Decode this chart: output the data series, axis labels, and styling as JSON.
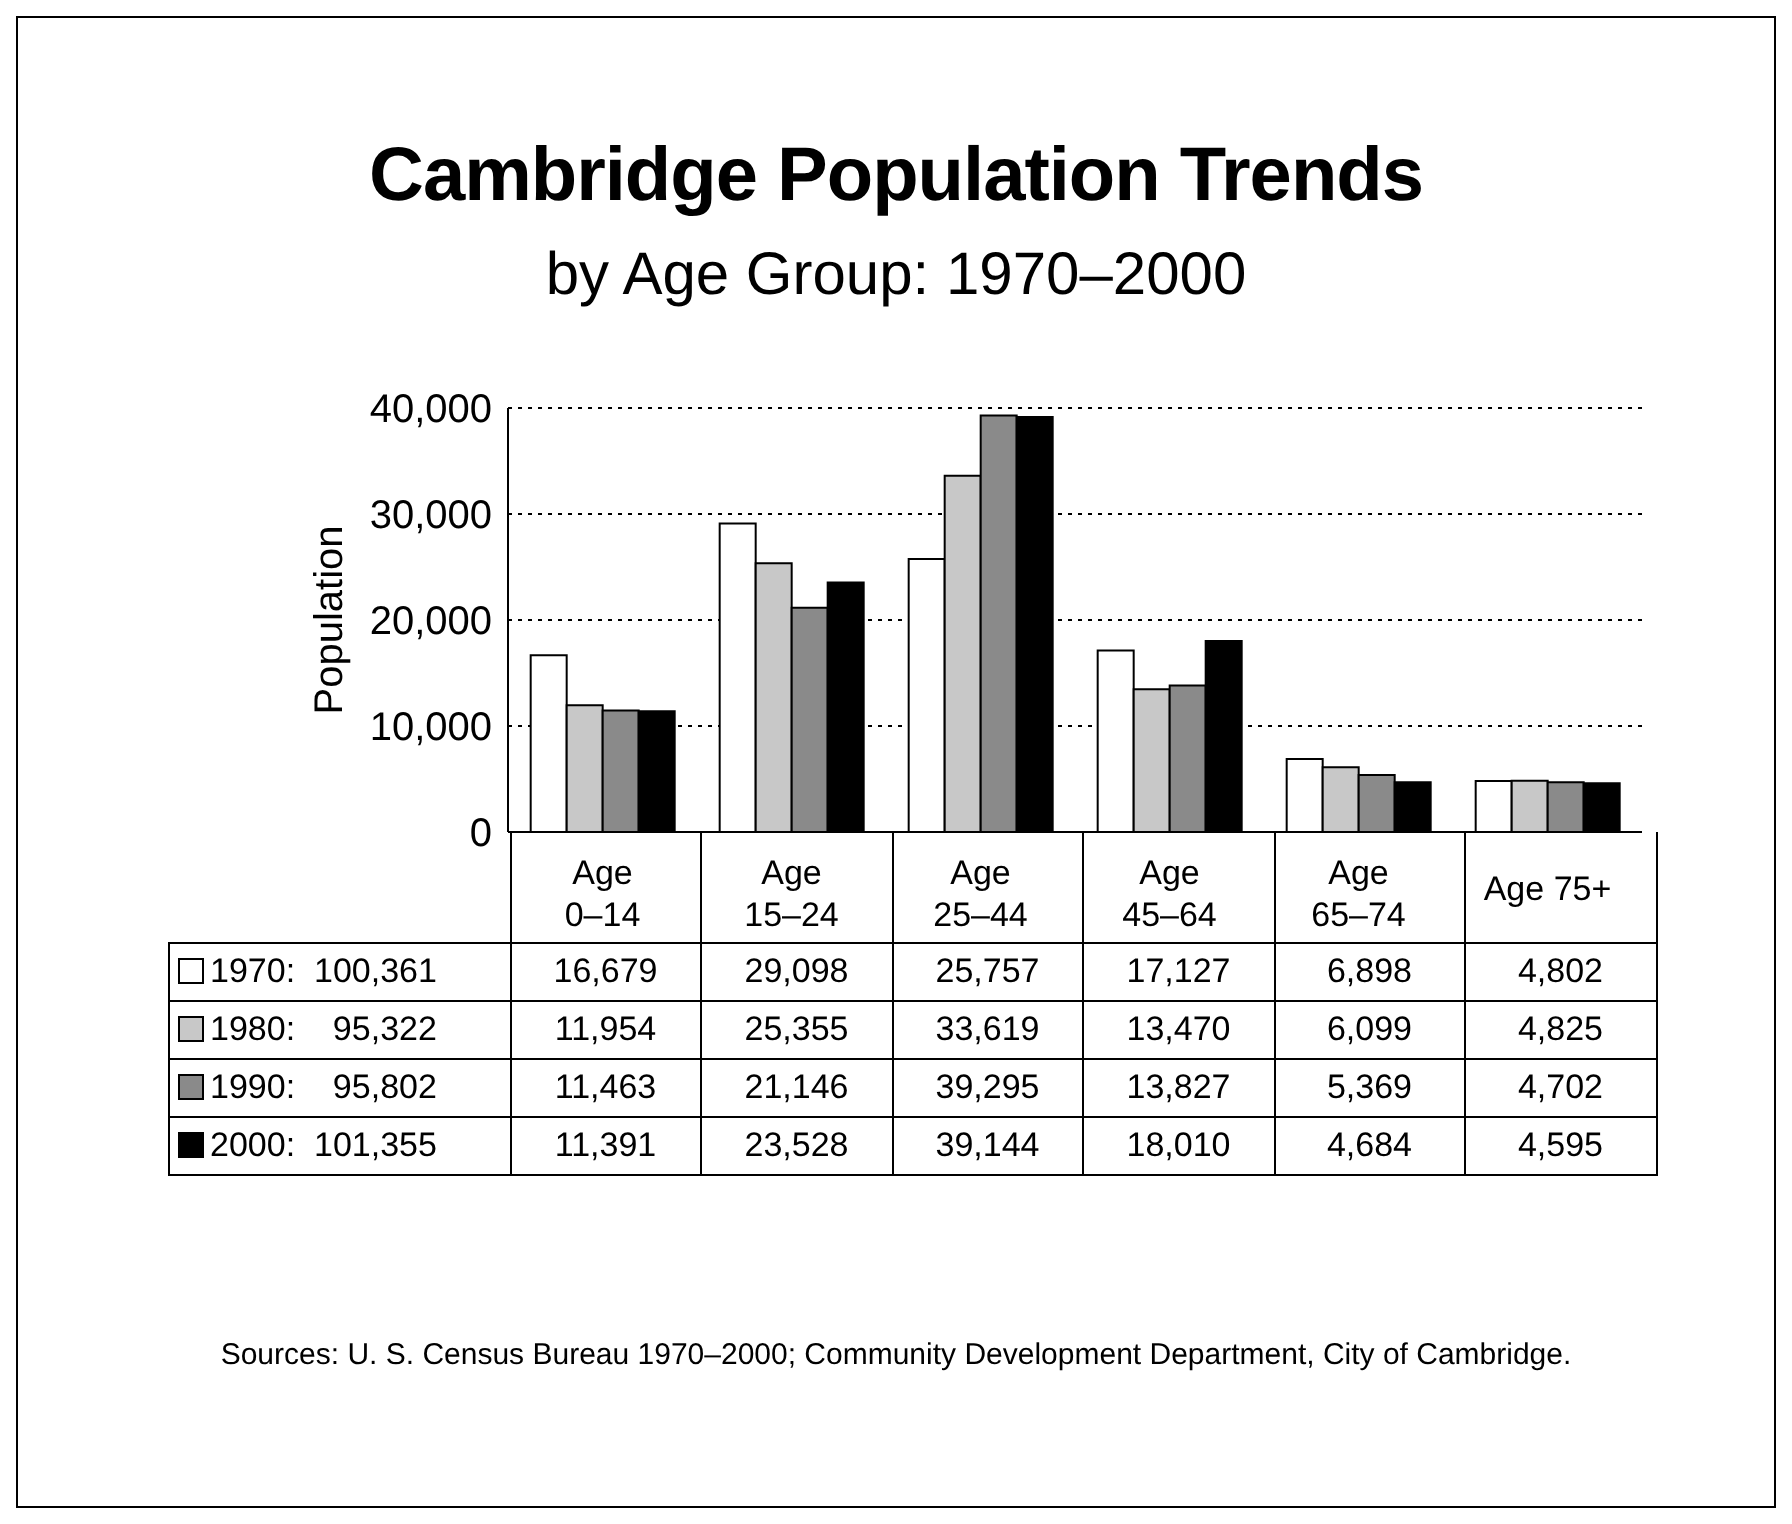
{
  "chart_data": {
    "type": "bar",
    "title": "Cambridge Population Trends",
    "subtitle": "by Age Group: 1970–2000",
    "ylabel": "Population",
    "categories": [
      "Age 0–14",
      "Age 15–24",
      "Age 25–44",
      "Age 45–64",
      "Age 65–74",
      "Age 75+"
    ],
    "series": [
      {
        "name": "1970:  100,361",
        "color": "#ffffff",
        "values": [
          16679,
          29098,
          25757,
          17127,
          6898,
          4802
        ],
        "value_labels": [
          "16,679",
          "29,098",
          "25,757",
          "17,127",
          "6,898",
          "4,802"
        ]
      },
      {
        "name": "1980:    95,322",
        "color": "#c8c8c8",
        "values": [
          11954,
          25355,
          33619,
          13470,
          6099,
          4825
        ],
        "value_labels": [
          "11,954",
          "25,355",
          "33,619",
          "13,470",
          "6,099",
          "4,825"
        ]
      },
      {
        "name": "1990:    95,802",
        "color": "#8a8a8a",
        "values": [
          11463,
          21146,
          39295,
          13827,
          5369,
          4702
        ],
        "value_labels": [
          "11,463",
          "21,146",
          "39,295",
          "13,827",
          "5,369",
          "4,702"
        ]
      },
      {
        "name": "2000:  101,355",
        "color": "#000000",
        "values": [
          11391,
          23528,
          39144,
          18010,
          4684,
          4595
        ],
        "value_labels": [
          "11,391",
          "23,528",
          "39,144",
          "18,010",
          "4,684",
          "4,595"
        ]
      }
    ],
    "ylim": [
      0,
      40000
    ],
    "yticks": [
      0,
      {
        "value": 10000,
        "label": "10,000"
      },
      {
        "value": 20000,
        "label": "20,000"
      },
      {
        "value": 30000,
        "label": "30,000"
      },
      {
        "value": 40000,
        "label": "40,000"
      }
    ],
    "grid": "y",
    "legend": "bottom",
    "annotations": [
      "Sources:  U. S. Census Bureau 1970–2000; Community Development Department, City of Cambridge."
    ]
  }
}
